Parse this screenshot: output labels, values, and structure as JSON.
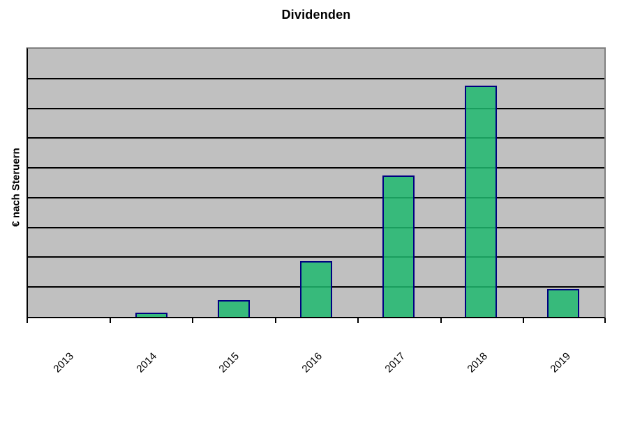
{
  "chart_data": {
    "type": "bar",
    "title": "Dividenden",
    "ylabel": "€ nach Steruern",
    "xlabel": "",
    "categories": [
      "2013",
      "2014",
      "2015",
      "2016",
      "2017",
      "2018",
      "2019"
    ],
    "values": [
      0,
      0.13,
      0.55,
      1.86,
      4.75,
      7.77,
      0.93
    ],
    "ylim": [
      0,
      9
    ],
    "grid": true,
    "gridline_count": 8,
    "y_tick_labels": "none",
    "legend_position": "none",
    "value_note": "No numeric y-axis labels are shown; values estimated in equal gridline units (plot divided into 9 horizontal bands).",
    "colors": {
      "bar_fill": "#41B478",
      "bar_fill_rgba": "rgba(30,185,110,0.85)",
      "bar_border": "#000080",
      "plot_background": "#C0C0C0",
      "gridline": "#000000",
      "axis_line": "#000000",
      "plot_border": "#808080",
      "page_background": "#FFFFFF",
      "text": "#000000"
    }
  }
}
